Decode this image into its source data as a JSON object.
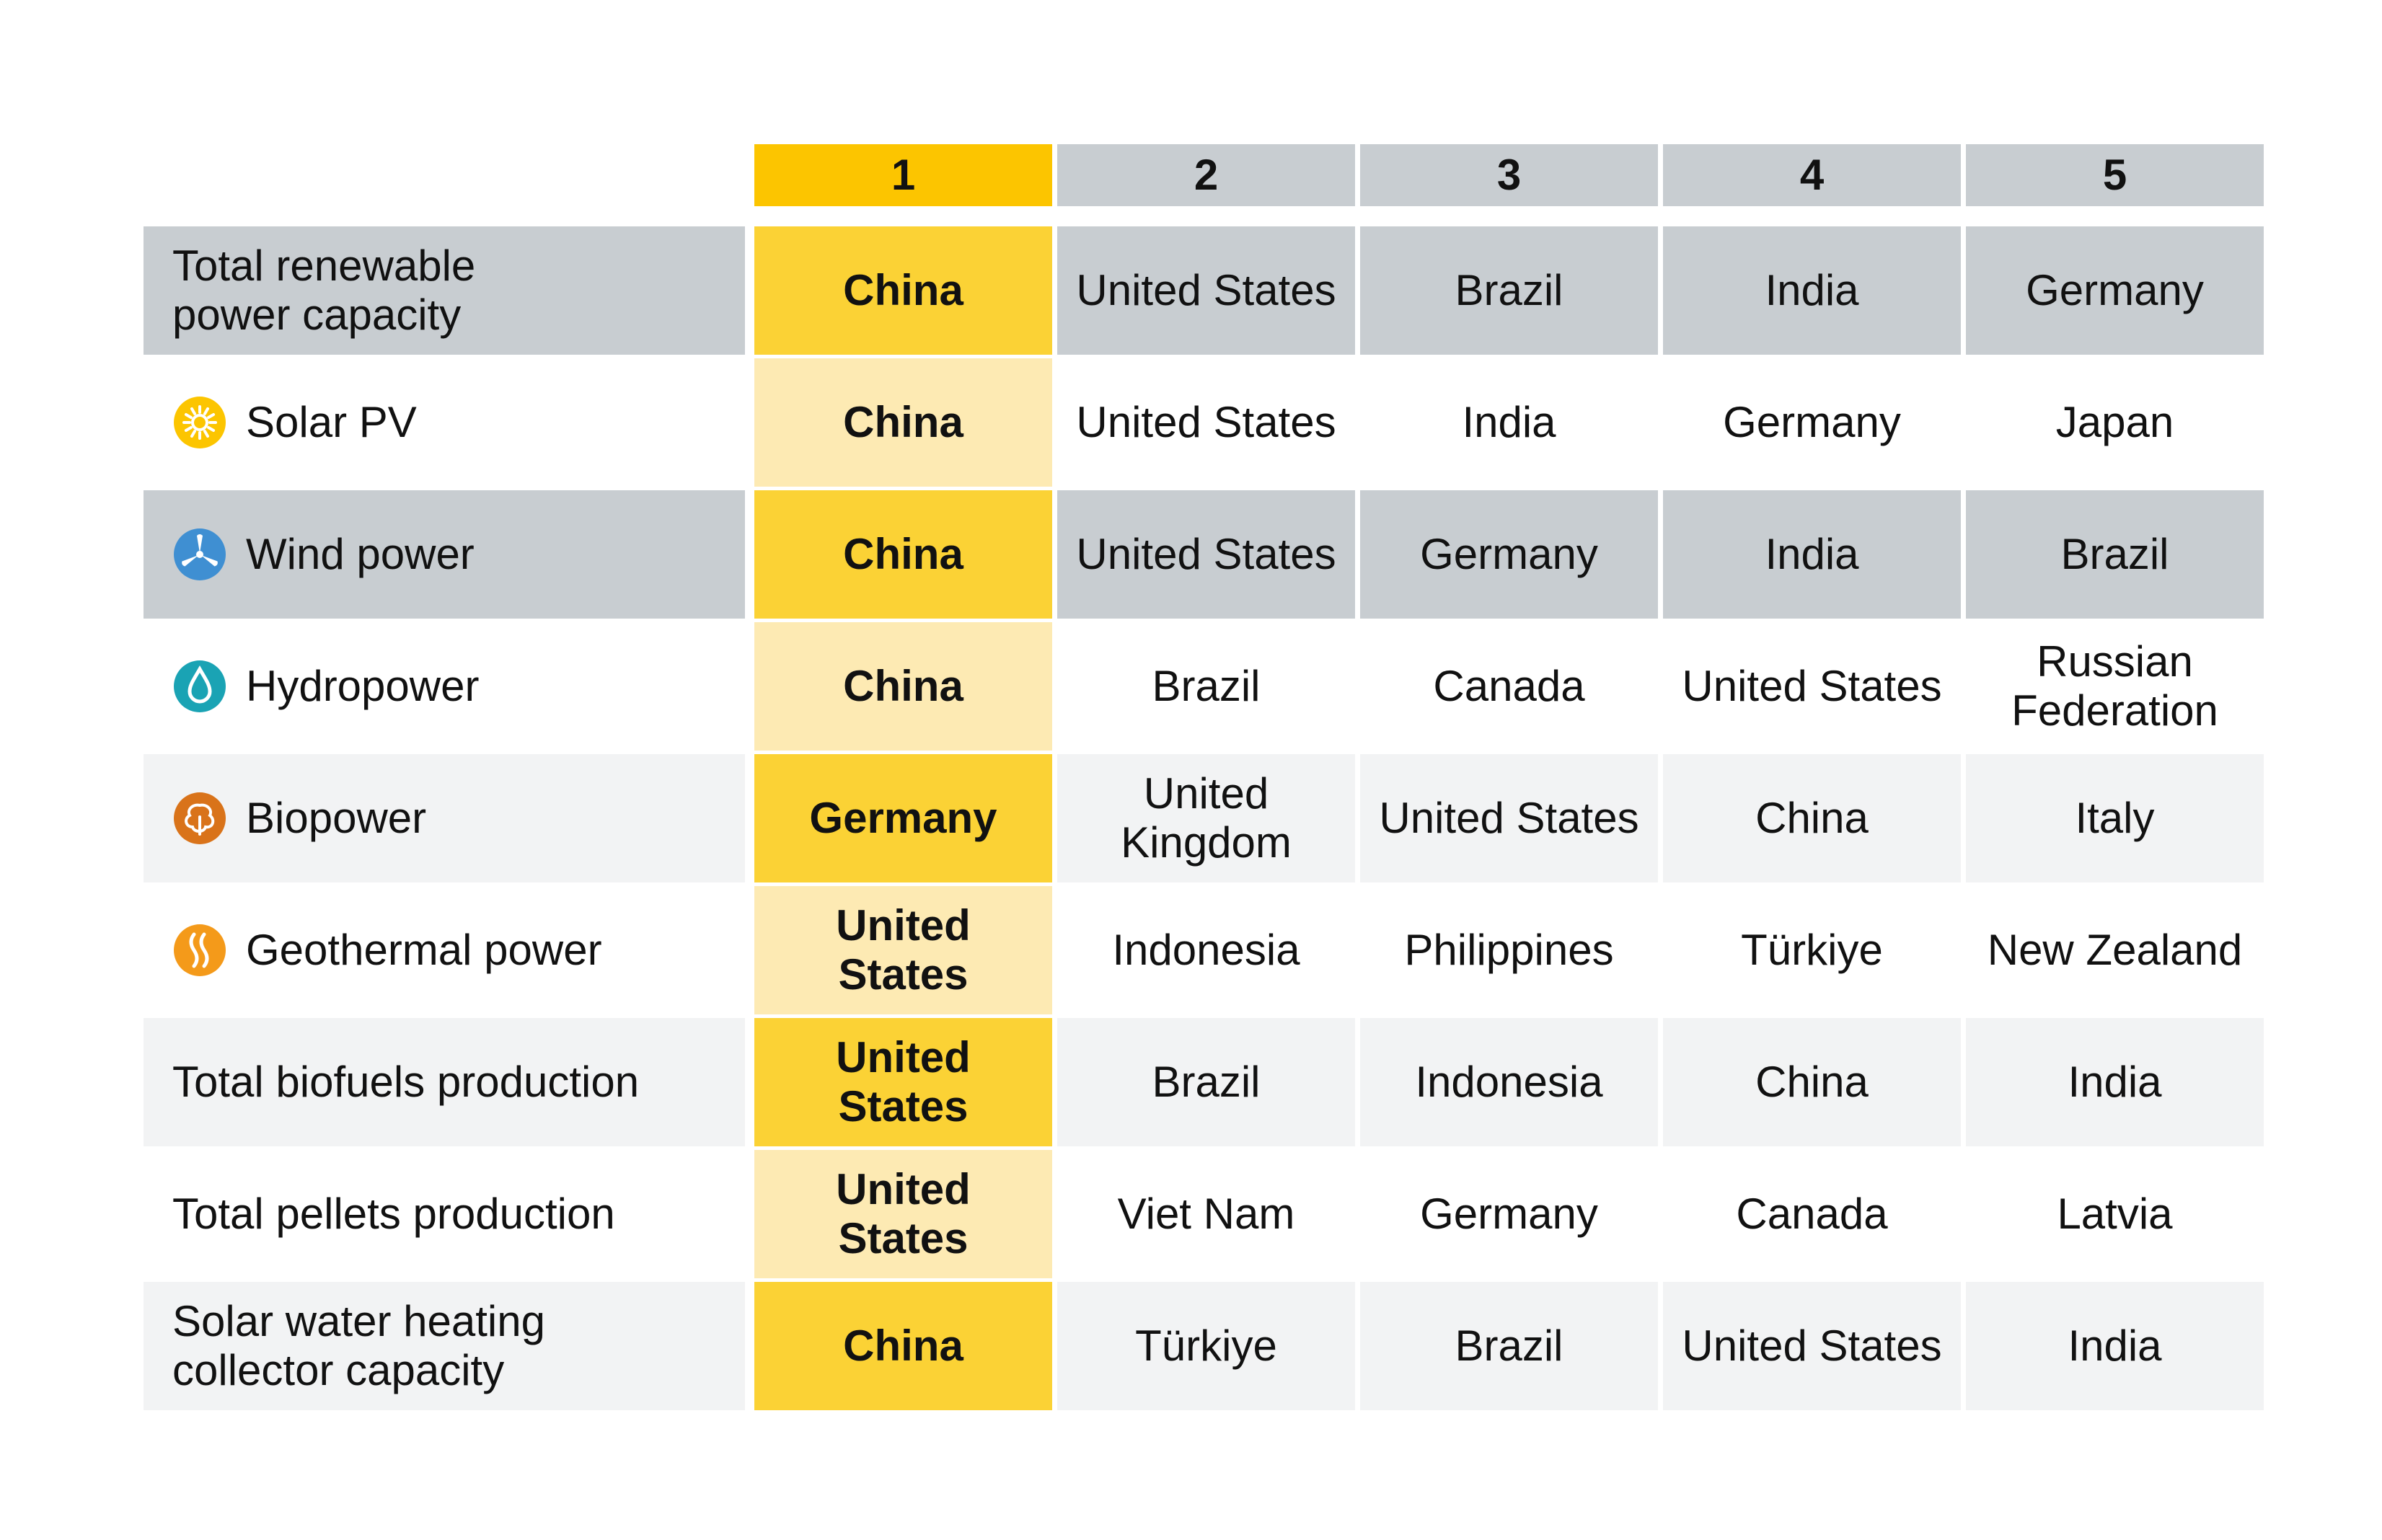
{
  "chart_data": {
    "type": "table",
    "columns": [
      "1",
      "2",
      "3",
      "4",
      "5"
    ],
    "rows": [
      {
        "label": "Total renewable power capacity",
        "icon": null,
        "style": "gray",
        "values": [
          "China",
          "United States",
          "Brazil",
          "India",
          "Germany"
        ]
      },
      {
        "label": "Solar PV",
        "icon": "solar-sun-icon",
        "style": "white",
        "values": [
          "China",
          "United States",
          "India",
          "Germany",
          "Japan"
        ]
      },
      {
        "label": "Wind power",
        "icon": "wind-turbine-icon",
        "style": "gray",
        "values": [
          "China",
          "United States",
          "Germany",
          "India",
          "Brazil"
        ]
      },
      {
        "label": "Hydropower",
        "icon": "water-drop-icon",
        "style": "white",
        "values": [
          "China",
          "Brazil",
          "Canada",
          "United States",
          "Russian Federation"
        ]
      },
      {
        "label": "Biopower",
        "icon": "biomass-leaf-icon",
        "style": "light",
        "values": [
          "Germany",
          "United Kingdom",
          "United States",
          "China",
          "Italy"
        ]
      },
      {
        "label": "Geothermal power",
        "icon": "geothermal-heat-icon",
        "style": "white",
        "values": [
          "United States",
          "Indonesia",
          "Philippines",
          "Türkiye",
          "New Zealand"
        ]
      },
      {
        "label": "Total biofuels production",
        "icon": null,
        "style": "light",
        "values": [
          "United States",
          "Brazil",
          "Indonesia",
          "China",
          "India"
        ]
      },
      {
        "label": "Total pellets production",
        "icon": null,
        "style": "white",
        "values": [
          "United States",
          "Viet Nam",
          "Germany",
          "Canada",
          "Latvia"
        ]
      },
      {
        "label": "Solar water heating collector capacity",
        "icon": null,
        "style": "light",
        "values": [
          "China",
          "Türkiye",
          "Brazil",
          "United States",
          "India"
        ]
      }
    ]
  },
  "colors": {
    "rank1_header": "#fcc500",
    "rank1_strong": "#fbd235",
    "rank1_pale": "#fdeab3",
    "gray_row": "#c8cdd1",
    "light_row": "#f2f3f4",
    "solar_icon": "#fcc500",
    "wind_icon": "#3f8fd2",
    "hydro_icon": "#1aa3b4",
    "bio_icon": "#d9731a",
    "geo_icon": "#f49a1a"
  }
}
